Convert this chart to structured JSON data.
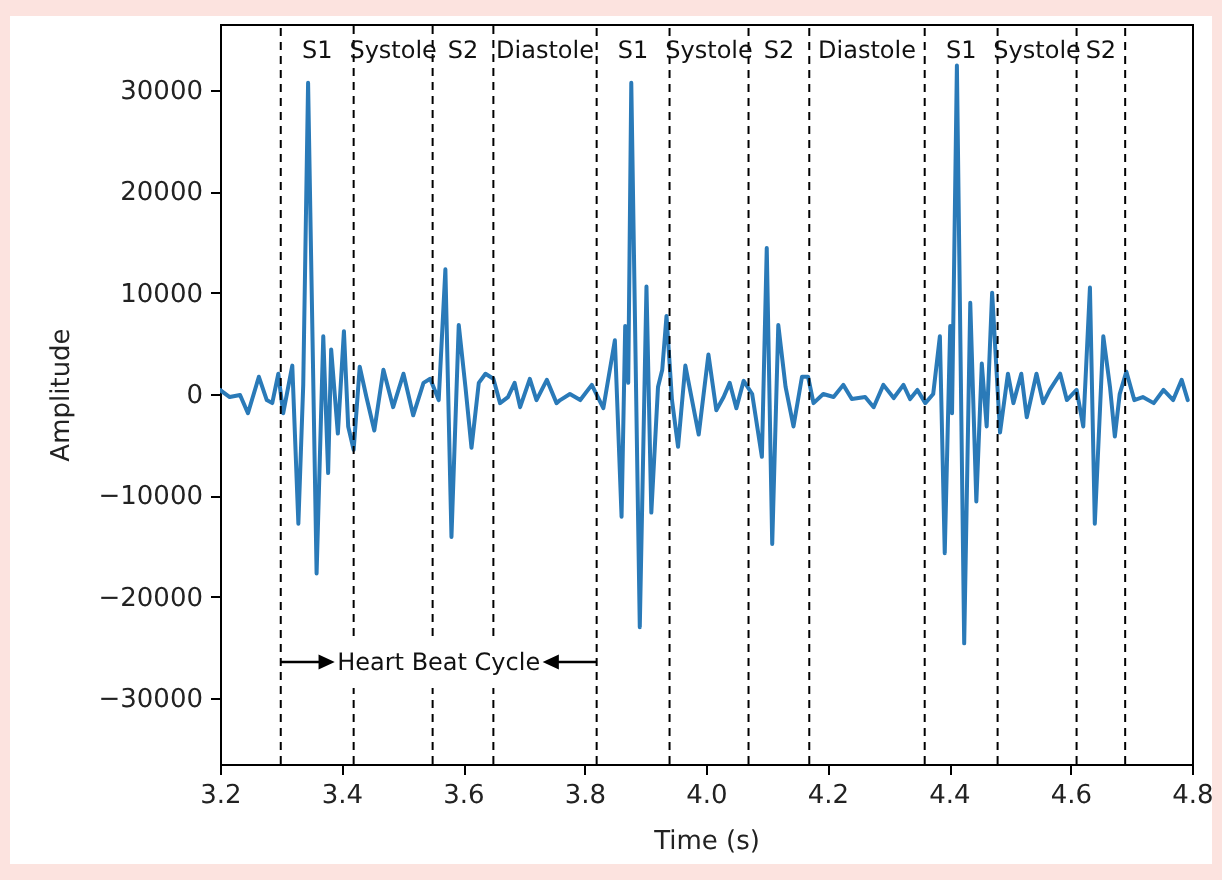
{
  "chart_data": {
    "type": "line",
    "xlabel": "Time (s)",
    "ylabel": "Amplitude",
    "xlim": [
      3.2,
      4.8
    ],
    "ylim": [
      -36500,
      36500
    ],
    "xticks": [
      3.2,
      3.4,
      3.6,
      3.8,
      {
        "value": 4,
        "label": "4.0"
      },
      4.2,
      4.4,
      4.6,
      4.8
    ],
    "yticks": [
      -30000,
      -20000,
      -10000,
      0,
      10000,
      20000,
      30000
    ],
    "x": [
      3.2,
      3.216,
      3.233,
      3.246,
      3.264,
      3.277,
      3.286,
      3.296,
      3.304,
      3.319,
      3.329,
      3.337,
      3.345,
      3.359,
      3.37,
      3.378,
      3.383,
      3.394,
      3.404,
      3.411,
      3.42,
      3.43,
      3.441,
      3.454,
      3.469,
      3.485,
      3.502,
      3.518,
      3.535,
      3.546,
      3.56,
      3.571,
      3.581,
      3.593,
      3.604,
      3.614,
      3.626,
      3.637,
      3.65,
      3.661,
      3.674,
      3.685,
      3.694,
      3.71,
      3.721,
      3.738,
      3.754,
      3.76,
      3.776,
      3.793,
      3.812,
      3.831,
      3.85,
      3.861,
      3.867,
      3.872,
      3.877,
      3.891,
      3.902,
      3.91,
      3.921,
      3.928,
      3.935,
      3.944,
      3.954,
      3.966,
      3.988,
      4.004,
      4.017,
      4.029,
      4.039,
      4.05,
      4.062,
      4.076,
      4.092,
      4.1,
      4.109,
      4.119,
      4.131,
      4.144,
      4.158,
      4.168,
      4.177,
      4.193,
      4.21,
      4.226,
      4.24,
      4.262,
      4.276,
      4.292,
      4.309,
      4.325,
      4.336,
      4.348,
      4.361,
      4.374,
      4.385,
      4.393,
      4.402,
      4.405,
      4.413,
      4.425,
      4.435,
      4.445,
      4.454,
      4.462,
      4.471,
      4.484,
      4.497,
      4.506,
      4.519,
      4.528,
      4.544,
      4.555,
      4.566,
      4.583,
      4.594,
      4.61,
      4.621,
      4.632,
      4.64,
      4.654,
      4.665,
      4.673,
      4.681,
      4.692,
      4.705,
      4.719,
      4.737,
      4.753,
      4.769,
      4.783,
      4.793
    ],
    "series": [
      {
        "color": "#2a7ab8",
        "values": [
          400,
          -300,
          -100,
          -1900,
          1700,
          -600,
          -900,
          2000,
          -1900,
          2800,
          -12800,
          900,
          30700,
          -17700,
          5700,
          -7800,
          4400,
          -3900,
          6200,
          -3200,
          -5500,
          2700,
          -300,
          -3600,
          2400,
          -1300,
          2000,
          -2100,
          1100,
          1500,
          -600,
          12300,
          -14100,
          6800,
          700,
          -5300,
          1100,
          2000,
          1500,
          -900,
          -300,
          1100,
          -1300,
          1500,
          -600,
          1400,
          -900,
          -600,
          0,
          -600,
          900,
          -1400,
          5300,
          -12100,
          6700,
          1100,
          30700,
          -23000,
          10600,
          -11700,
          700,
          2400,
          7700,
          -600,
          -5200,
          2800,
          -4000,
          3900,
          -1600,
          -300,
          1100,
          -1400,
          1300,
          0,
          -6200,
          14400,
          -14800,
          6800,
          700,
          -3200,
          1700,
          1700,
          -900,
          0,
          -300,
          900,
          -500,
          -300,
          -1300,
          900,
          -400,
          900,
          -500,
          400,
          -900,
          0,
          5700,
          -15700,
          6700,
          -1900,
          32400,
          -24600,
          9000,
          -10600,
          3000,
          -3200,
          10000,
          -3800,
          2000,
          -900,
          2000,
          -2300,
          2000,
          -900,
          400,
          2000,
          -600,
          400,
          -3200,
          10500,
          -12800,
          5700,
          700,
          -4200,
          0,
          2200,
          -600,
          -300,
          -900,
          400,
          -600,
          1400,
          -600
        ]
      }
    ],
    "ref_lines": [
      {
        "axis": "x",
        "value": 3.3,
        "color": "#000000",
        "line_style": "dashed"
      },
      {
        "axis": "x",
        "value": 3.42,
        "color": "#000000",
        "line_style": "dashed"
      },
      {
        "axis": "x",
        "value": 3.55,
        "color": "#000000",
        "line_style": "dashed"
      },
      {
        "axis": "x",
        "value": 3.65,
        "color": "#000000",
        "line_style": "dashed"
      },
      {
        "axis": "x",
        "value": 3.82,
        "color": "#000000",
        "line_style": "dashed"
      },
      {
        "axis": "x",
        "value": 3.94,
        "color": "#000000",
        "line_style": "dashed"
      },
      {
        "axis": "x",
        "value": 4.07,
        "color": "#000000",
        "line_style": "dashed"
      },
      {
        "axis": "x",
        "value": 4.17,
        "color": "#000000",
        "line_style": "dashed"
      },
      {
        "axis": "x",
        "value": 4.36,
        "color": "#000000",
        "line_style": "dashed"
      },
      {
        "axis": "x",
        "value": 4.48,
        "color": "#000000",
        "line_style": "dashed"
      },
      {
        "axis": "x",
        "value": 4.61,
        "color": "#000000",
        "line_style": "dashed"
      },
      {
        "axis": "x",
        "value": 4.69,
        "color": "#000000",
        "line_style": "dashed"
      }
    ],
    "annotations": [
      "S1",
      "Systole",
      "S2",
      "Diastole",
      "S1",
      "Systole",
      "S2",
      "Diastole",
      "S1",
      "Systole",
      "S2",
      "Heart Beat Cycle"
    ]
  }
}
